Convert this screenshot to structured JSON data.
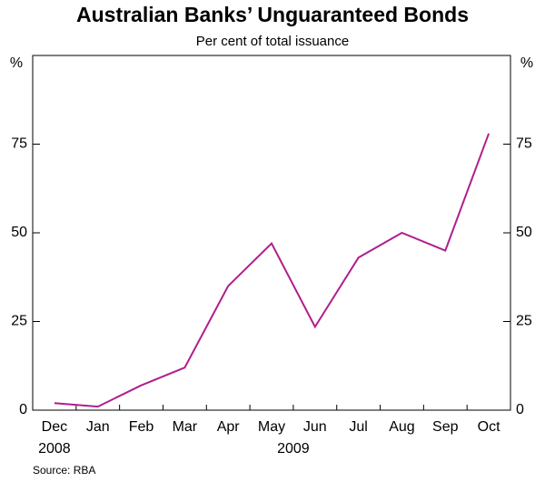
{
  "chart_data": {
    "type": "line",
    "title": "Australian Banks’ Unguaranteed Bonds",
    "subtitle": "Per cent of total issuance",
    "y_unit": "%",
    "source": "Source: RBA",
    "categories": [
      "Dec",
      "Jan",
      "Feb",
      "Mar",
      "Apr",
      "May",
      "Jun",
      "Jul",
      "Aug",
      "Sep",
      "Oct"
    ],
    "year_labels": [
      "2008",
      "2009"
    ],
    "values": [
      2,
      1,
      7,
      12,
      35,
      47,
      23.5,
      43,
      50,
      45,
      78
    ],
    "color": "#b01e8e",
    "ylim": [
      0,
      100
    ],
    "yticks": [
      0,
      25,
      50,
      75
    ],
    "grid": false
  }
}
